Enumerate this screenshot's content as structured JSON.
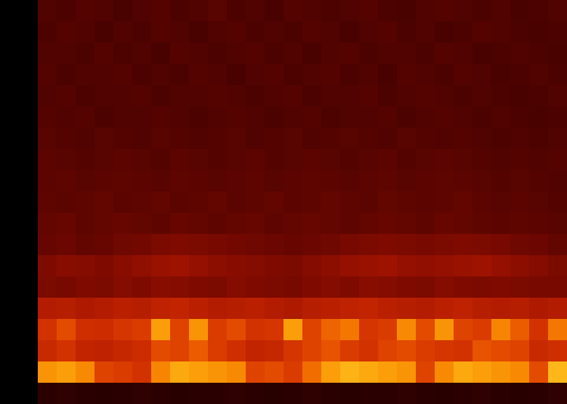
{
  "chart_data": {
    "type": "heatmap",
    "tick_labels": false,
    "color_range": [
      0,
      100
    ],
    "cells": [
      [
        0,
        0,
        22,
        21,
        23,
        22,
        20,
        22,
        23,
        21,
        22,
        24,
        21,
        22,
        20,
        23,
        22,
        21,
        22,
        23,
        21,
        20,
        22,
        23,
        22,
        21,
        22,
        20,
        21,
        22
      ],
      [
        0,
        0,
        21,
        23,
        22,
        20,
        22,
        21,
        23,
        22,
        20,
        22,
        23,
        21,
        22,
        21,
        23,
        22,
        20,
        22,
        23,
        21,
        22,
        20,
        21,
        23,
        22,
        21,
        20,
        21
      ],
      [
        0,
        0,
        22,
        22,
        21,
        23,
        21,
        22,
        20,
        23,
        22,
        21,
        22,
        23,
        21,
        22,
        20,
        22,
        23,
        21,
        22,
        22,
        21,
        23,
        22,
        20,
        21,
        22,
        21,
        20
      ],
      [
        0,
        0,
        23,
        21,
        22,
        22,
        23,
        21,
        22,
        21,
        23,
        22,
        20,
        22,
        23,
        21,
        22,
        23,
        21,
        22,
        20,
        23,
        22,
        21,
        23,
        22,
        20,
        21,
        22,
        21
      ],
      [
        0,
        0,
        22,
        23,
        21,
        22,
        22,
        23,
        21,
        22,
        22,
        23,
        22,
        21,
        22,
        23,
        21,
        22,
        22,
        23,
        21,
        22,
        23,
        22,
        21,
        22,
        21,
        20,
        21,
        22
      ],
      [
        0,
        0,
        23,
        22,
        23,
        21,
        22,
        22,
        23,
        22,
        21,
        22,
        23,
        22,
        21,
        22,
        23,
        21,
        22,
        22,
        23,
        21,
        22,
        23,
        22,
        21,
        22,
        21,
        20,
        21
      ],
      [
        0,
        0,
        24,
        23,
        22,
        24,
        23,
        22,
        24,
        23,
        22,
        23,
        24,
        22,
        23,
        24,
        22,
        23,
        24,
        23,
        22,
        24,
        23,
        22,
        23,
        22,
        21,
        22,
        21,
        22
      ],
      [
        0,
        0,
        25,
        24,
        23,
        24,
        25,
        24,
        23,
        25,
        24,
        23,
        24,
        25,
        23,
        24,
        25,
        24,
        23,
        24,
        25,
        23,
        24,
        25,
        24,
        23,
        22,
        23,
        22,
        23
      ],
      [
        0,
        0,
        25,
        26,
        24,
        25,
        26,
        25,
        24,
        26,
        25,
        24,
        25,
        26,
        24,
        25,
        26,
        25,
        24,
        25,
        26,
        24,
        25,
        26,
        25,
        24,
        23,
        24,
        23,
        22
      ],
      [
        0,
        0,
        26,
        25,
        26,
        27,
        25,
        26,
        27,
        25,
        26,
        27,
        25,
        26,
        27,
        25,
        26,
        27,
        26,
        25,
        27,
        26,
        25,
        26,
        27,
        25,
        24,
        25,
        24,
        23
      ],
      [
        0,
        0,
        27,
        28,
        26,
        27,
        28,
        27,
        26,
        28,
        27,
        26,
        27,
        28,
        26,
        27,
        28,
        27,
        26,
        27,
        28,
        27,
        26,
        28,
        27,
        26,
        25,
        26,
        25,
        24
      ],
      [
        0,
        0,
        28,
        29,
        27,
        28,
        30,
        31,
        33,
        34,
        33,
        32,
        31,
        30,
        29,
        28,
        29,
        30,
        32,
        33,
        34,
        33,
        32,
        33,
        34,
        33,
        32,
        30,
        29,
        27
      ],
      [
        0,
        0,
        34,
        36,
        35,
        34,
        36,
        38,
        40,
        41,
        39,
        37,
        36,
        35,
        34,
        33,
        35,
        37,
        39,
        40,
        41,
        39,
        38,
        39,
        40,
        41,
        39,
        37,
        35,
        33
      ],
      [
        0,
        0,
        33,
        32,
        34,
        33,
        35,
        34,
        36,
        35,
        34,
        33,
        35,
        34,
        33,
        32,
        34,
        35,
        34,
        36,
        35,
        34,
        33,
        35,
        34,
        33,
        34,
        33,
        32,
        32
      ],
      [
        0,
        0,
        46,
        47,
        45,
        46,
        48,
        47,
        49,
        50,
        48,
        46,
        47,
        48,
        46,
        45,
        47,
        48,
        49,
        50,
        48,
        47,
        46,
        48,
        49,
        47,
        46,
        47,
        45,
        46
      ],
      [
        0,
        0,
        55,
        62,
        54,
        53,
        56,
        58,
        80,
        60,
        78,
        58,
        62,
        55,
        56,
        80,
        60,
        68,
        72,
        56,
        58,
        76,
        62,
        78,
        60,
        58,
        75,
        66,
        55,
        72
      ],
      [
        0,
        0,
        52,
        55,
        50,
        49,
        51,
        53,
        62,
        60,
        66,
        58,
        54,
        50,
        51,
        56,
        60,
        64,
        58,
        55,
        60,
        62,
        58,
        56,
        55,
        64,
        62,
        60,
        52,
        54
      ],
      [
        0,
        0,
        78,
        80,
        76,
        60,
        58,
        55,
        75,
        82,
        80,
        78,
        76,
        60,
        62,
        58,
        70,
        80,
        84,
        82,
        80,
        78,
        60,
        76,
        82,
        80,
        78,
        76,
        62,
        85
      ],
      [
        0,
        0,
        12,
        13,
        12,
        11,
        12,
        13,
        12,
        11,
        12,
        12,
        13,
        12,
        11,
        12,
        13,
        12,
        11,
        12,
        12,
        13,
        12,
        11,
        12,
        13,
        12,
        11,
        12,
        13
      ]
    ]
  }
}
